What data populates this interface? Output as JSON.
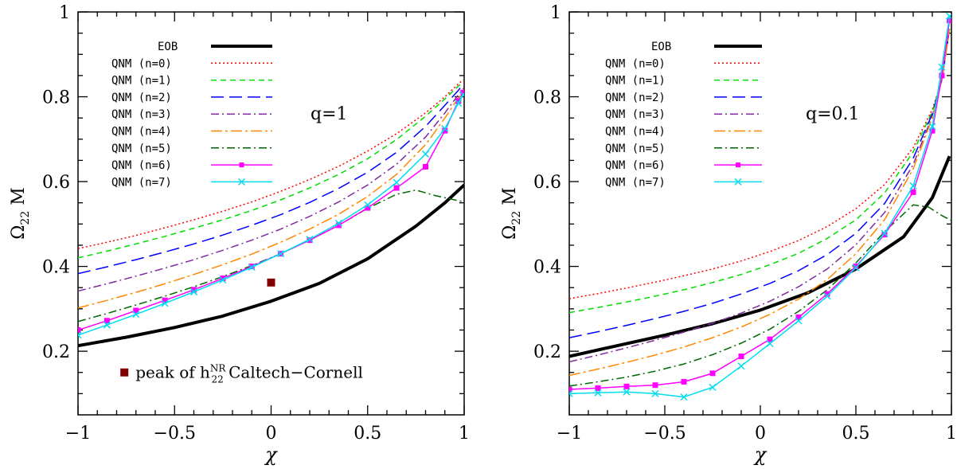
{
  "chart_data": [
    {
      "type": "line",
      "xlabel": "χ",
      "ylabel": "Ω",
      "ylabel_sub": "22",
      "ylabel_suffix": " M",
      "xlim": [
        -1,
        1
      ],
      "ylim": [
        0.05,
        1
      ],
      "xticks": [
        -1,
        -0.5,
        0,
        0.5,
        1
      ],
      "xtick_labels": [
        "−1",
        "−0.5",
        "0",
        "0.5",
        "1"
      ],
      "yticks": [
        0.2,
        0.4,
        0.6,
        0.8,
        1
      ],
      "ytick_labels": [
        "0.2",
        "0.4",
        "0.6",
        "0.8",
        "1"
      ],
      "grid": false,
      "legend_position": "top-left",
      "annotation": "q=1",
      "x": [
        -1,
        -0.85,
        -0.7,
        -0.55,
        -0.4,
        -0.25,
        -0.1,
        0.05,
        0.2,
        0.35,
        0.5,
        0.65,
        0.8,
        0.9,
        0.97,
        0.995
      ],
      "series": [
        {
          "name": "EOB",
          "color": "#000000",
          "style": "solid",
          "width": 4,
          "x": [
            -1,
            -0.75,
            -0.5,
            -0.25,
            0,
            0.25,
            0.5,
            0.75,
            0.9,
            1.0
          ],
          "values": [
            0.213,
            0.233,
            0.256,
            0.283,
            0.318,
            0.36,
            0.418,
            0.495,
            0.55,
            0.592
          ]
        },
        {
          "name": "QNM (n=0)",
          "color": "#ff0000",
          "style": "dotted",
          "values": [
            0.442,
            0.457,
            0.473,
            0.491,
            0.51,
            0.53,
            0.552,
            0.577,
            0.605,
            0.636,
            0.672,
            0.713,
            0.762,
            0.8,
            0.83,
            0.84
          ]
        },
        {
          "name": "QNM (n=1)",
          "color": "#00dd00",
          "style": "dashed",
          "values": [
            0.42,
            0.436,
            0.453,
            0.471,
            0.49,
            0.51,
            0.532,
            0.557,
            0.585,
            0.617,
            0.654,
            0.699,
            0.754,
            0.795,
            0.825,
            0.835
          ]
        },
        {
          "name": "QNM (n=2)",
          "color": "#0000ff",
          "style": "longdash",
          "values": [
            0.383,
            0.399,
            0.416,
            0.434,
            0.453,
            0.474,
            0.497,
            0.522,
            0.551,
            0.584,
            0.622,
            0.669,
            0.73,
            0.78,
            0.815,
            0.83
          ]
        },
        {
          "name": "QNM (n=3)",
          "color": "#7f2a9f",
          "style": "dashdot",
          "values": [
            0.342,
            0.359,
            0.377,
            0.396,
            0.416,
            0.438,
            0.462,
            0.488,
            0.518,
            0.552,
            0.592,
            0.641,
            0.705,
            0.762,
            0.805,
            0.82
          ]
        },
        {
          "name": "QNM (n=4)",
          "color": "#ff8800",
          "style": "longdashdot",
          "values": [
            0.302,
            0.32,
            0.339,
            0.359,
            0.381,
            0.404,
            0.429,
            0.457,
            0.488,
            0.523,
            0.565,
            0.617,
            0.687,
            0.75,
            0.797,
            0.815
          ]
        },
        {
          "name": "QNM (n=5)",
          "color": "#006600",
          "style": "dashdot",
          "x": [
            -1,
            -0.85,
            -0.7,
            -0.55,
            -0.4,
            -0.25,
            -0.1,
            0.05,
            0.2,
            0.35,
            0.5,
            0.65,
            0.75,
            0.85,
            0.95,
            1.0
          ],
          "values": [
            0.27,
            0.289,
            0.309,
            0.33,
            0.352,
            0.376,
            0.402,
            0.43,
            0.462,
            0.497,
            0.537,
            0.57,
            0.58,
            0.567,
            0.557,
            0.552
          ]
        },
        {
          "name": "QNM (n=6)",
          "color": "#ff00ff",
          "style": "solid",
          "marker": "square",
          "values": [
            0.25,
            0.272,
            0.296,
            0.32,
            0.345,
            0.372,
            0.4,
            0.43,
            0.462,
            0.497,
            0.538,
            0.585,
            0.635,
            0.72,
            0.79,
            0.81
          ]
        },
        {
          "name": "QNM (n=7)",
          "color": "#00ddee",
          "style": "solid",
          "marker": "cross",
          "values": [
            0.238,
            0.262,
            0.287,
            0.313,
            0.34,
            0.368,
            0.398,
            0.43,
            0.464,
            0.502,
            0.545,
            0.598,
            0.665,
            0.725,
            0.785,
            0.805
          ]
        }
      ],
      "extra_points": [
        {
          "name": "peak of h",
          "sup": "NR",
          "sub": "22",
          "label_rest": " Caltech−Cornell",
          "x": 0.0,
          "y": 0.362,
          "color": "#800000"
        }
      ],
      "legend_marker": {
        "x": -0.76,
        "y": 0.15,
        "color": "#800000"
      }
    },
    {
      "type": "line",
      "xlabel": "χ",
      "ylabel": "Ω",
      "ylabel_sub": "22",
      "ylabel_suffix": " M",
      "xlim": [
        -1,
        1
      ],
      "ylim": [
        0.05,
        1
      ],
      "xticks": [
        -1,
        -0.5,
        0,
        0.5,
        1
      ],
      "xtick_labels": [
        "−1",
        "−0.5",
        "0",
        "0.5",
        "1"
      ],
      "yticks": [
        0.2,
        0.4,
        0.6,
        0.8,
        1
      ],
      "ytick_labels": [
        "0.2",
        "0.4",
        "0.6",
        "0.8",
        "1"
      ],
      "grid": false,
      "legend_position": "top-left",
      "annotation": "q=0.1",
      "x": [
        -1,
        -0.85,
        -0.7,
        -0.55,
        -0.4,
        -0.25,
        -0.1,
        0.05,
        0.2,
        0.35,
        0.5,
        0.65,
        0.8,
        0.9,
        0.95,
        0.99
      ],
      "series": [
        {
          "name": "EOB",
          "color": "#000000",
          "style": "solid",
          "width": 4,
          "x": [
            -1,
            -0.75,
            -0.5,
            -0.25,
            0,
            0.25,
            0.5,
            0.75,
            0.9,
            0.99
          ],
          "values": [
            0.188,
            0.213,
            0.238,
            0.265,
            0.297,
            0.338,
            0.394,
            0.47,
            0.562,
            0.66
          ]
        },
        {
          "name": "QNM (n=0)",
          "color": "#ff0000",
          "style": "dotted",
          "values": [
            0.324,
            0.336,
            0.349,
            0.363,
            0.378,
            0.394,
            0.413,
            0.435,
            0.461,
            0.494,
            0.536,
            0.593,
            0.68,
            0.77,
            0.84,
            0.96
          ]
        },
        {
          "name": "QNM (n=1)",
          "color": "#00dd00",
          "style": "dashed",
          "values": [
            0.291,
            0.303,
            0.316,
            0.33,
            0.345,
            0.362,
            0.381,
            0.404,
            0.431,
            0.466,
            0.51,
            0.573,
            0.67,
            0.765,
            0.84,
            0.96
          ]
        },
        {
          "name": "QNM (n=2)",
          "color": "#0000ff",
          "style": "longdash",
          "values": [
            0.232,
            0.246,
            0.261,
            0.277,
            0.294,
            0.313,
            0.335,
            0.36,
            0.39,
            0.428,
            0.478,
            0.548,
            0.655,
            0.76,
            0.84,
            0.96
          ]
        },
        {
          "name": "QNM (n=3)",
          "color": "#7f2a9f",
          "style": "dashdot",
          "values": [
            0.175,
            0.191,
            0.208,
            0.226,
            0.245,
            0.266,
            0.29,
            0.318,
            0.352,
            0.394,
            0.451,
            0.527,
            0.64,
            0.755,
            0.84,
            0.96
          ]
        },
        {
          "name": "QNM (n=4)",
          "color": "#ff8800",
          "style": "longdashdot",
          "values": [
            0.143,
            0.158,
            0.174,
            0.191,
            0.21,
            0.232,
            0.257,
            0.287,
            0.323,
            0.369,
            0.43,
            0.51,
            0.63,
            0.75,
            0.84,
            0.96
          ]
        },
        {
          "name": "QNM (n=5)",
          "color": "#006600",
          "style": "dashdot",
          "x": [
            -1,
            -0.85,
            -0.7,
            -0.55,
            -0.4,
            -0.25,
            -0.1,
            0.05,
            0.2,
            0.35,
            0.5,
            0.65,
            0.8,
            0.88,
            0.95,
            1.0
          ],
          "values": [
            0.118,
            0.128,
            0.139,
            0.153,
            0.17,
            0.192,
            0.219,
            0.252,
            0.294,
            0.345,
            0.408,
            0.482,
            0.545,
            0.54,
            0.52,
            0.508
          ]
        },
        {
          "name": "QNM (n=6)",
          "color": "#ff00ff",
          "style": "solid",
          "marker": "square",
          "values": [
            0.11,
            0.113,
            0.117,
            0.12,
            0.128,
            0.148,
            0.188,
            0.228,
            0.28,
            0.335,
            0.4,
            0.475,
            0.575,
            0.72,
            0.85,
            0.98
          ]
        },
        {
          "name": "QNM (n=7)",
          "color": "#00ddee",
          "style": "solid",
          "marker": "cross",
          "values": [
            0.1,
            0.102,
            0.104,
            0.1,
            0.092,
            0.115,
            0.165,
            0.218,
            0.272,
            0.33,
            0.397,
            0.478,
            0.59,
            0.73,
            0.87,
            0.99
          ]
        }
      ],
      "extra_points": []
    }
  ]
}
